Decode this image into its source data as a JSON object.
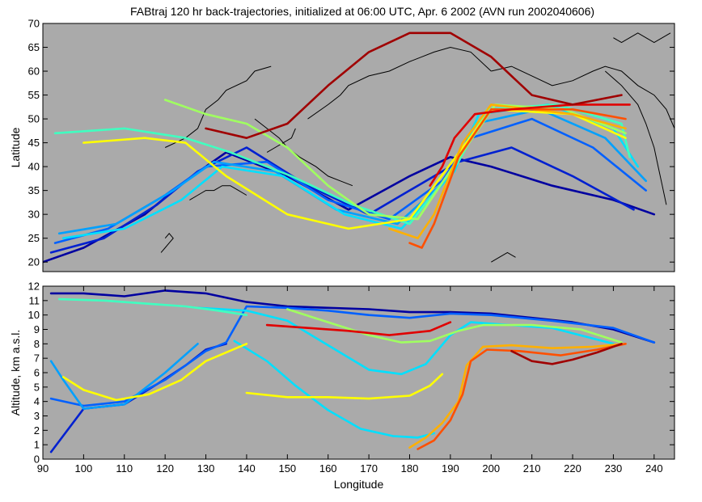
{
  "chart_data": [
    {
      "type": "line",
      "title": "FABtraj 120 hr back-trajectories, initialized at 06:00 UTC, Apr. 6 2002 (AVN run 2002040606)",
      "xlabel": "",
      "ylabel": "Latitude",
      "xlim": [
        90,
        245
      ],
      "ylim": [
        18,
        70
      ],
      "yticks": [
        "20",
        "25",
        "30",
        "35",
        "40",
        "45",
        "50",
        "55",
        "60",
        "65",
        "70"
      ],
      "background_color": "#aaaaaa",
      "coastline_color": "#000000",
      "grid": false,
      "series": [
        {
          "color": "#0000a0",
          "x": [
            90,
            100,
            115,
            125,
            135,
            150,
            165,
            180,
            190,
            200,
            215,
            230,
            240
          ],
          "y": [
            20,
            23,
            30,
            37,
            43,
            38,
            31,
            38,
            42,
            40,
            36,
            33,
            30
          ]
        },
        {
          "color": "#0020d0",
          "x": [
            92,
            105,
            118,
            128,
            140,
            155,
            170,
            182,
            192,
            205,
            220,
            235
          ],
          "y": [
            22,
            25,
            32,
            39,
            44,
            36,
            30,
            36,
            41,
            44,
            38,
            31
          ]
        },
        {
          "color": "#0060ff",
          "x": [
            93,
            106,
            120,
            130,
            145,
            160,
            175,
            188,
            195,
            210,
            225,
            238
          ],
          "y": [
            24,
            27,
            34,
            40,
            41,
            33,
            29,
            37,
            46,
            50,
            44,
            35
          ]
        },
        {
          "color": "#00a0ff",
          "x": [
            94,
            108,
            122,
            132,
            147,
            162,
            177,
            190,
            196,
            212,
            228,
            238
          ],
          "y": [
            26,
            28,
            35,
            41,
            39,
            31,
            28,
            38,
            49,
            52,
            46,
            37
          ]
        },
        {
          "color": "#00e0ff",
          "x": [
            95,
            110,
            124,
            134,
            149,
            164,
            178,
            191,
            197,
            214,
            230,
            236
          ],
          "y": [
            25,
            27,
            33,
            40,
            38,
            30,
            27,
            39,
            51,
            53,
            48,
            40
          ]
        },
        {
          "color": "#40ffc0",
          "x": [
            93,
            110,
            125,
            136,
            151,
            166,
            180,
            192,
            199,
            216,
            232,
            234
          ],
          "y": [
            47,
            48,
            46,
            43,
            38,
            32,
            28,
            41,
            52,
            53,
            49,
            42
          ]
        },
        {
          "color": "#a0ff60",
          "x": [
            120,
            130,
            140,
            150,
            160,
            170,
            182,
            193,
            201,
            218,
            233
          ],
          "y": [
            54,
            51,
            49,
            44,
            36,
            30,
            29,
            43,
            53,
            52,
            47
          ]
        },
        {
          "color": "#ffff00",
          "x": [
            100,
            115,
            125,
            135,
            150,
            165,
            180,
            193,
            200,
            220,
            233
          ],
          "y": [
            45,
            46,
            45,
            38,
            30,
            27,
            29,
            44,
            52,
            51,
            46
          ]
        },
        {
          "color": "#ffb000",
          "x": [
            175,
            182,
            186,
            193,
            200,
            220,
            233
          ],
          "y": [
            27,
            25,
            30,
            45,
            53,
            51,
            48
          ]
        },
        {
          "color": "#ff5000",
          "x": [
            180,
            183,
            186,
            192,
            200,
            220,
            233
          ],
          "y": [
            24,
            23,
            28,
            42,
            52,
            52,
            50
          ]
        },
        {
          "color": "#e00000",
          "x": [
            185,
            188,
            191,
            196,
            205,
            220,
            234
          ],
          "y": [
            36,
            40,
            46,
            51,
            52,
            53,
            53
          ]
        },
        {
          "color": "#a00000",
          "x": [
            130,
            140,
            150,
            160,
            170,
            180,
            190,
            200,
            210,
            220,
            232
          ],
          "y": [
            48,
            46,
            49,
            57,
            64,
            68,
            68,
            63,
            55,
            53,
            55
          ]
        }
      ],
      "coastlines": [
        {
          "x": [
            120,
            125,
            128,
            130,
            133,
            135,
            140,
            142,
            146
          ],
          "y": [
            44,
            46,
            48,
            52,
            54,
            56,
            58,
            60,
            61
          ]
        },
        {
          "x": [
            142,
            145,
            148,
            150,
            153,
            157,
            160,
            163,
            166
          ],
          "y": [
            50,
            48,
            46,
            44,
            42,
            40,
            38,
            37,
            36
          ]
        },
        {
          "x": [
            155,
            160,
            163,
            165,
            170,
            175,
            180,
            183,
            186,
            190,
            195,
            200
          ],
          "y": [
            50,
            53,
            55,
            57,
            59,
            60,
            62,
            63,
            64,
            65,
            64,
            60
          ]
        },
        {
          "x": [
            200,
            205,
            210,
            215,
            220,
            225,
            228,
            232,
            236,
            240,
            243,
            245
          ],
          "y": [
            60,
            61,
            59,
            57,
            58,
            60,
            61,
            60,
            57,
            55,
            52,
            48
          ]
        },
        {
          "x": [
            228,
            232,
            236,
            238,
            240,
            241,
            242,
            243
          ],
          "y": [
            60,
            57,
            53,
            49,
            44,
            40,
            36,
            32
          ]
        },
        {
          "x": [
            126,
            128,
            130,
            132,
            134,
            136,
            138,
            140
          ],
          "y": [
            33,
            34,
            35,
            35,
            36,
            36,
            35,
            34
          ]
        },
        {
          "x": [
            119,
            120,
            121,
            122,
            121,
            120
          ],
          "y": [
            22,
            23,
            24,
            25,
            26,
            25
          ]
        },
        {
          "x": [
            145,
            147,
            149,
            151,
            152
          ],
          "y": [
            43,
            44,
            45,
            46,
            48
          ]
        },
        {
          "x": [
            200,
            202,
            204,
            206
          ],
          "y": [
            20,
            21,
            22,
            21
          ]
        },
        {
          "x": [
            230,
            232,
            234,
            236,
            238,
            240,
            242,
            244
          ],
          "y": [
            67,
            66,
            67,
            68,
            67,
            66,
            67,
            68
          ]
        }
      ]
    },
    {
      "type": "line",
      "title": "",
      "xlabel": "Longitude",
      "ylabel": "Altitude, km a.s.l.",
      "xlim": [
        90,
        245
      ],
      "ylim": [
        0,
        12
      ],
      "xticks": [
        "90",
        "100",
        "110",
        "120",
        "130",
        "140",
        "150",
        "160",
        "170",
        "180",
        "190",
        "200",
        "210",
        "220",
        "230",
        "240"
      ],
      "yticks": [
        "0",
        "1",
        "2",
        "3",
        "4",
        "5",
        "6",
        "7",
        "8",
        "9",
        "10",
        "11",
        "12"
      ],
      "background_color": "#aaaaaa",
      "grid": false,
      "series": [
        {
          "color": "#0000a0",
          "x": [
            92,
            100,
            110,
            120,
            130,
            140,
            150,
            160,
            170,
            180,
            190,
            200,
            210,
            220,
            230,
            240
          ],
          "y": [
            11.5,
            11.5,
            11.3,
            11.7,
            11.5,
            10.9,
            10.6,
            10.5,
            10.4,
            10.2,
            10.2,
            10.1,
            9.8,
            9.5,
            9.0,
            8.1
          ]
        },
        {
          "color": "#0020d0",
          "x": [
            92,
            100,
            110,
            118,
            125,
            130,
            135
          ],
          "y": [
            0.5,
            3.5,
            3.8,
            5.2,
            6.5,
            7.6,
            8.0
          ]
        },
        {
          "color": "#0060ff",
          "x": [
            92,
            100,
            110,
            120,
            130,
            135,
            140,
            150,
            160,
            170,
            180,
            190,
            200,
            215,
            230,
            240
          ],
          "y": [
            4.2,
            3.7,
            4.0,
            5.5,
            7.5,
            8.1,
            10.6,
            10.5,
            10.3,
            10.0,
            9.8,
            10.1,
            10.0,
            9.6,
            9.1,
            8.1
          ]
        },
        {
          "color": "#00a0ff",
          "x": [
            92,
            95,
            100,
            110,
            120,
            128
          ],
          "y": [
            6.8,
            5.5,
            3.5,
            3.8,
            6.0,
            8.0
          ]
        },
        {
          "color": "#00e0ff",
          "x": [
            128,
            140,
            150,
            160,
            170,
            178,
            184,
            190,
            195,
            200,
            215,
            230
          ],
          "y": [
            10.5,
            10.3,
            9.6,
            7.9,
            6.2,
            5.9,
            6.6,
            8.6,
            9.5,
            9.4,
            9.1,
            8.0
          ]
        },
        {
          "color": "#00e0ff",
          "x": [
            137,
            145,
            152,
            160,
            168,
            176,
            182,
            186
          ],
          "y": [
            8.2,
            6.8,
            5.1,
            3.4,
            2.1,
            1.6,
            1.5,
            1.8
          ]
        },
        {
          "color": "#40ffc0",
          "x": [
            94,
            105,
            115,
            125,
            133,
            140
          ],
          "y": [
            11.1,
            11.0,
            10.8,
            10.6,
            10.3,
            10.0
          ]
        },
        {
          "color": "#a0ff60",
          "x": [
            150,
            160,
            170,
            178,
            185,
            192,
            198,
            210,
            222,
            232
          ],
          "y": [
            10.4,
            9.5,
            8.6,
            8.1,
            8.2,
            8.9,
            9.3,
            9.3,
            9.0,
            8.1
          ]
        },
        {
          "color": "#ffff00",
          "x": [
            95,
            100,
            108,
            116,
            124,
            130,
            140
          ],
          "y": [
            5.7,
            4.8,
            4.1,
            4.5,
            5.5,
            6.8,
            8.0
          ]
        },
        {
          "color": "#ffff00",
          "x": [
            140,
            150,
            160,
            170,
            180,
            185,
            188
          ],
          "y": [
            4.6,
            4.3,
            4.3,
            4.2,
            4.4,
            5.1,
            5.9
          ]
        },
        {
          "color": "#ffb000",
          "x": [
            180,
            184,
            188,
            192,
            194,
            198,
            205,
            215,
            225,
            233
          ],
          "y": [
            0.8,
            1.5,
            2.5,
            4.0,
            6.5,
            7.8,
            7.9,
            7.7,
            7.8,
            8.0
          ]
        },
        {
          "color": "#ff5000",
          "x": [
            182,
            186,
            190,
            193,
            195,
            199,
            207,
            217,
            226,
            233
          ],
          "y": [
            0.7,
            1.3,
            2.7,
            4.5,
            6.8,
            7.6,
            7.5,
            7.2,
            7.6,
            8.0
          ]
        },
        {
          "color": "#e00000",
          "x": [
            145,
            155,
            165,
            175,
            185,
            190
          ],
          "y": [
            9.3,
            9.1,
            8.9,
            8.6,
            8.9,
            9.5
          ]
        },
        {
          "color": "#a00000",
          "x": [
            205,
            210,
            215,
            220,
            226,
            232
          ],
          "y": [
            7.5,
            6.8,
            6.6,
            6.9,
            7.4,
            8.0
          ]
        }
      ]
    }
  ]
}
